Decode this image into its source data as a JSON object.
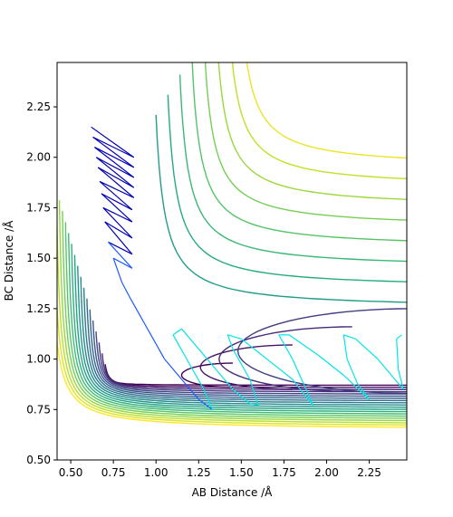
{
  "chart_data": {
    "type": "contour",
    "title": "",
    "xlabel": "AB Distance /Å",
    "ylabel": "BC Distance /Å",
    "xlim": [
      0.42,
      2.47
    ],
    "ylim": [
      0.5,
      2.47
    ],
    "xticks": [
      "0.50",
      "0.75",
      "1.00",
      "1.25",
      "1.50",
      "1.75",
      "2.00",
      "2.25"
    ],
    "yticks": [
      "0.50",
      "0.75",
      "1.00",
      "1.25",
      "1.50",
      "1.75",
      "2.00",
      "2.25"
    ],
    "grid": false,
    "contours": {
      "colormap": "viridis",
      "colors": [
        "#440154",
        "#482475",
        "#414487",
        "#355f8d",
        "#2a788e",
        "#21918c",
        "#22a884",
        "#44bf70",
        "#7ad151",
        "#bddf26",
        "#fde725"
      ],
      "description_levels": 20,
      "minimum_region": [
        1.2,
        0.85
      ]
    },
    "trajectory": {
      "colors_start_to_end": [
        "#0000b4",
        "#1e5aff",
        "#00e6e6"
      ],
      "points": [
        [
          0.62,
          2.15
        ],
        [
          0.87,
          2.0
        ],
        [
          0.63,
          2.1
        ],
        [
          0.87,
          1.95
        ],
        [
          0.64,
          2.05
        ],
        [
          0.87,
          1.9
        ],
        [
          0.65,
          2.0
        ],
        [
          0.87,
          1.85
        ],
        [
          0.66,
          1.95
        ],
        [
          0.87,
          1.8
        ],
        [
          0.67,
          1.88
        ],
        [
          0.86,
          1.74
        ],
        [
          0.68,
          1.82
        ],
        [
          0.86,
          1.68
        ],
        [
          0.69,
          1.75
        ],
        [
          0.86,
          1.6
        ],
        [
          0.7,
          1.68
        ],
        [
          0.86,
          1.52
        ],
        [
          0.72,
          1.58
        ],
        [
          0.86,
          1.45
        ],
        [
          0.75,
          1.5
        ],
        [
          0.8,
          1.38
        ],
        [
          0.85,
          1.3
        ],
        [
          0.95,
          1.15
        ],
        [
          1.05,
          1.0
        ],
        [
          1.15,
          0.9
        ],
        [
          1.25,
          0.8
        ],
        [
          1.33,
          0.75
        ],
        [
          1.28,
          0.85
        ],
        [
          1.18,
          1.0
        ],
        [
          1.1,
          1.12
        ],
        [
          1.15,
          1.15
        ],
        [
          1.25,
          1.05
        ],
        [
          1.35,
          0.95
        ],
        [
          1.45,
          0.85
        ],
        [
          1.55,
          0.78
        ],
        [
          1.6,
          0.77
        ],
        [
          1.55,
          0.9
        ],
        [
          1.45,
          1.05
        ],
        [
          1.42,
          1.12
        ],
        [
          1.5,
          1.1
        ],
        [
          1.65,
          1.0
        ],
        [
          1.8,
          0.9
        ],
        [
          1.92,
          0.77
        ],
        [
          1.88,
          0.85
        ],
        [
          1.8,
          1.0
        ],
        [
          1.72,
          1.12
        ],
        [
          1.78,
          1.12
        ],
        [
          1.95,
          1.02
        ],
        [
          2.1,
          0.92
        ],
        [
          2.25,
          0.8
        ],
        [
          2.18,
          0.88
        ],
        [
          2.12,
          1.0
        ],
        [
          2.1,
          1.12
        ],
        [
          2.17,
          1.1
        ],
        [
          2.3,
          1.0
        ],
        [
          2.45,
          0.85
        ],
        [
          2.42,
          0.95
        ],
        [
          2.41,
          1.1
        ],
        [
          2.44,
          1.12
        ]
      ]
    }
  }
}
